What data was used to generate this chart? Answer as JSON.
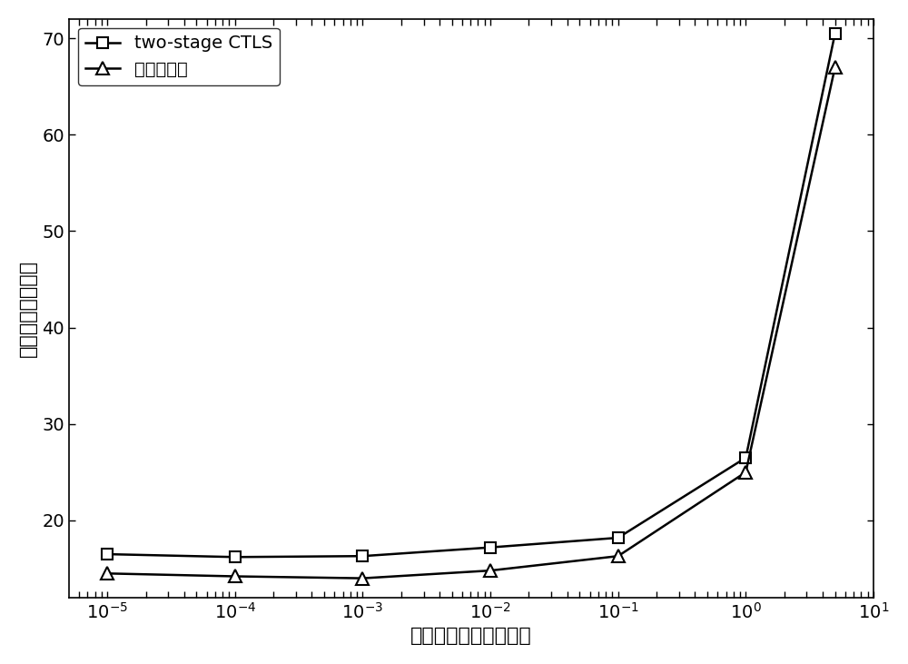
{
  "x_values": [
    1e-05,
    0.0001,
    0.001,
    0.01,
    0.1,
    1.0,
    5.0
  ],
  "ctls_y": [
    16.5,
    16.2,
    16.3,
    17.2,
    18.2,
    26.5,
    70.5
  ],
  "invention_y": [
    14.5,
    14.2,
    14.0,
    14.8,
    16.3,
    25.0,
    67.0
  ],
  "xlabel": "观测站位置误差（米）",
  "ylabel": "均方根误差（米）",
  "legend_ctls": "two-stage CTLS",
  "legend_invention": "本发明方法",
  "xlim_log": [
    -5.3,
    1.0
  ],
  "ylim": [
    12,
    72
  ],
  "yticks": [
    20,
    30,
    40,
    50,
    60,
    70
  ],
  "line_color": "#000000",
  "bg_color": "#ffffff",
  "title_fontsize": 14,
  "label_fontsize": 16,
  "tick_fontsize": 14,
  "legend_fontsize": 14
}
